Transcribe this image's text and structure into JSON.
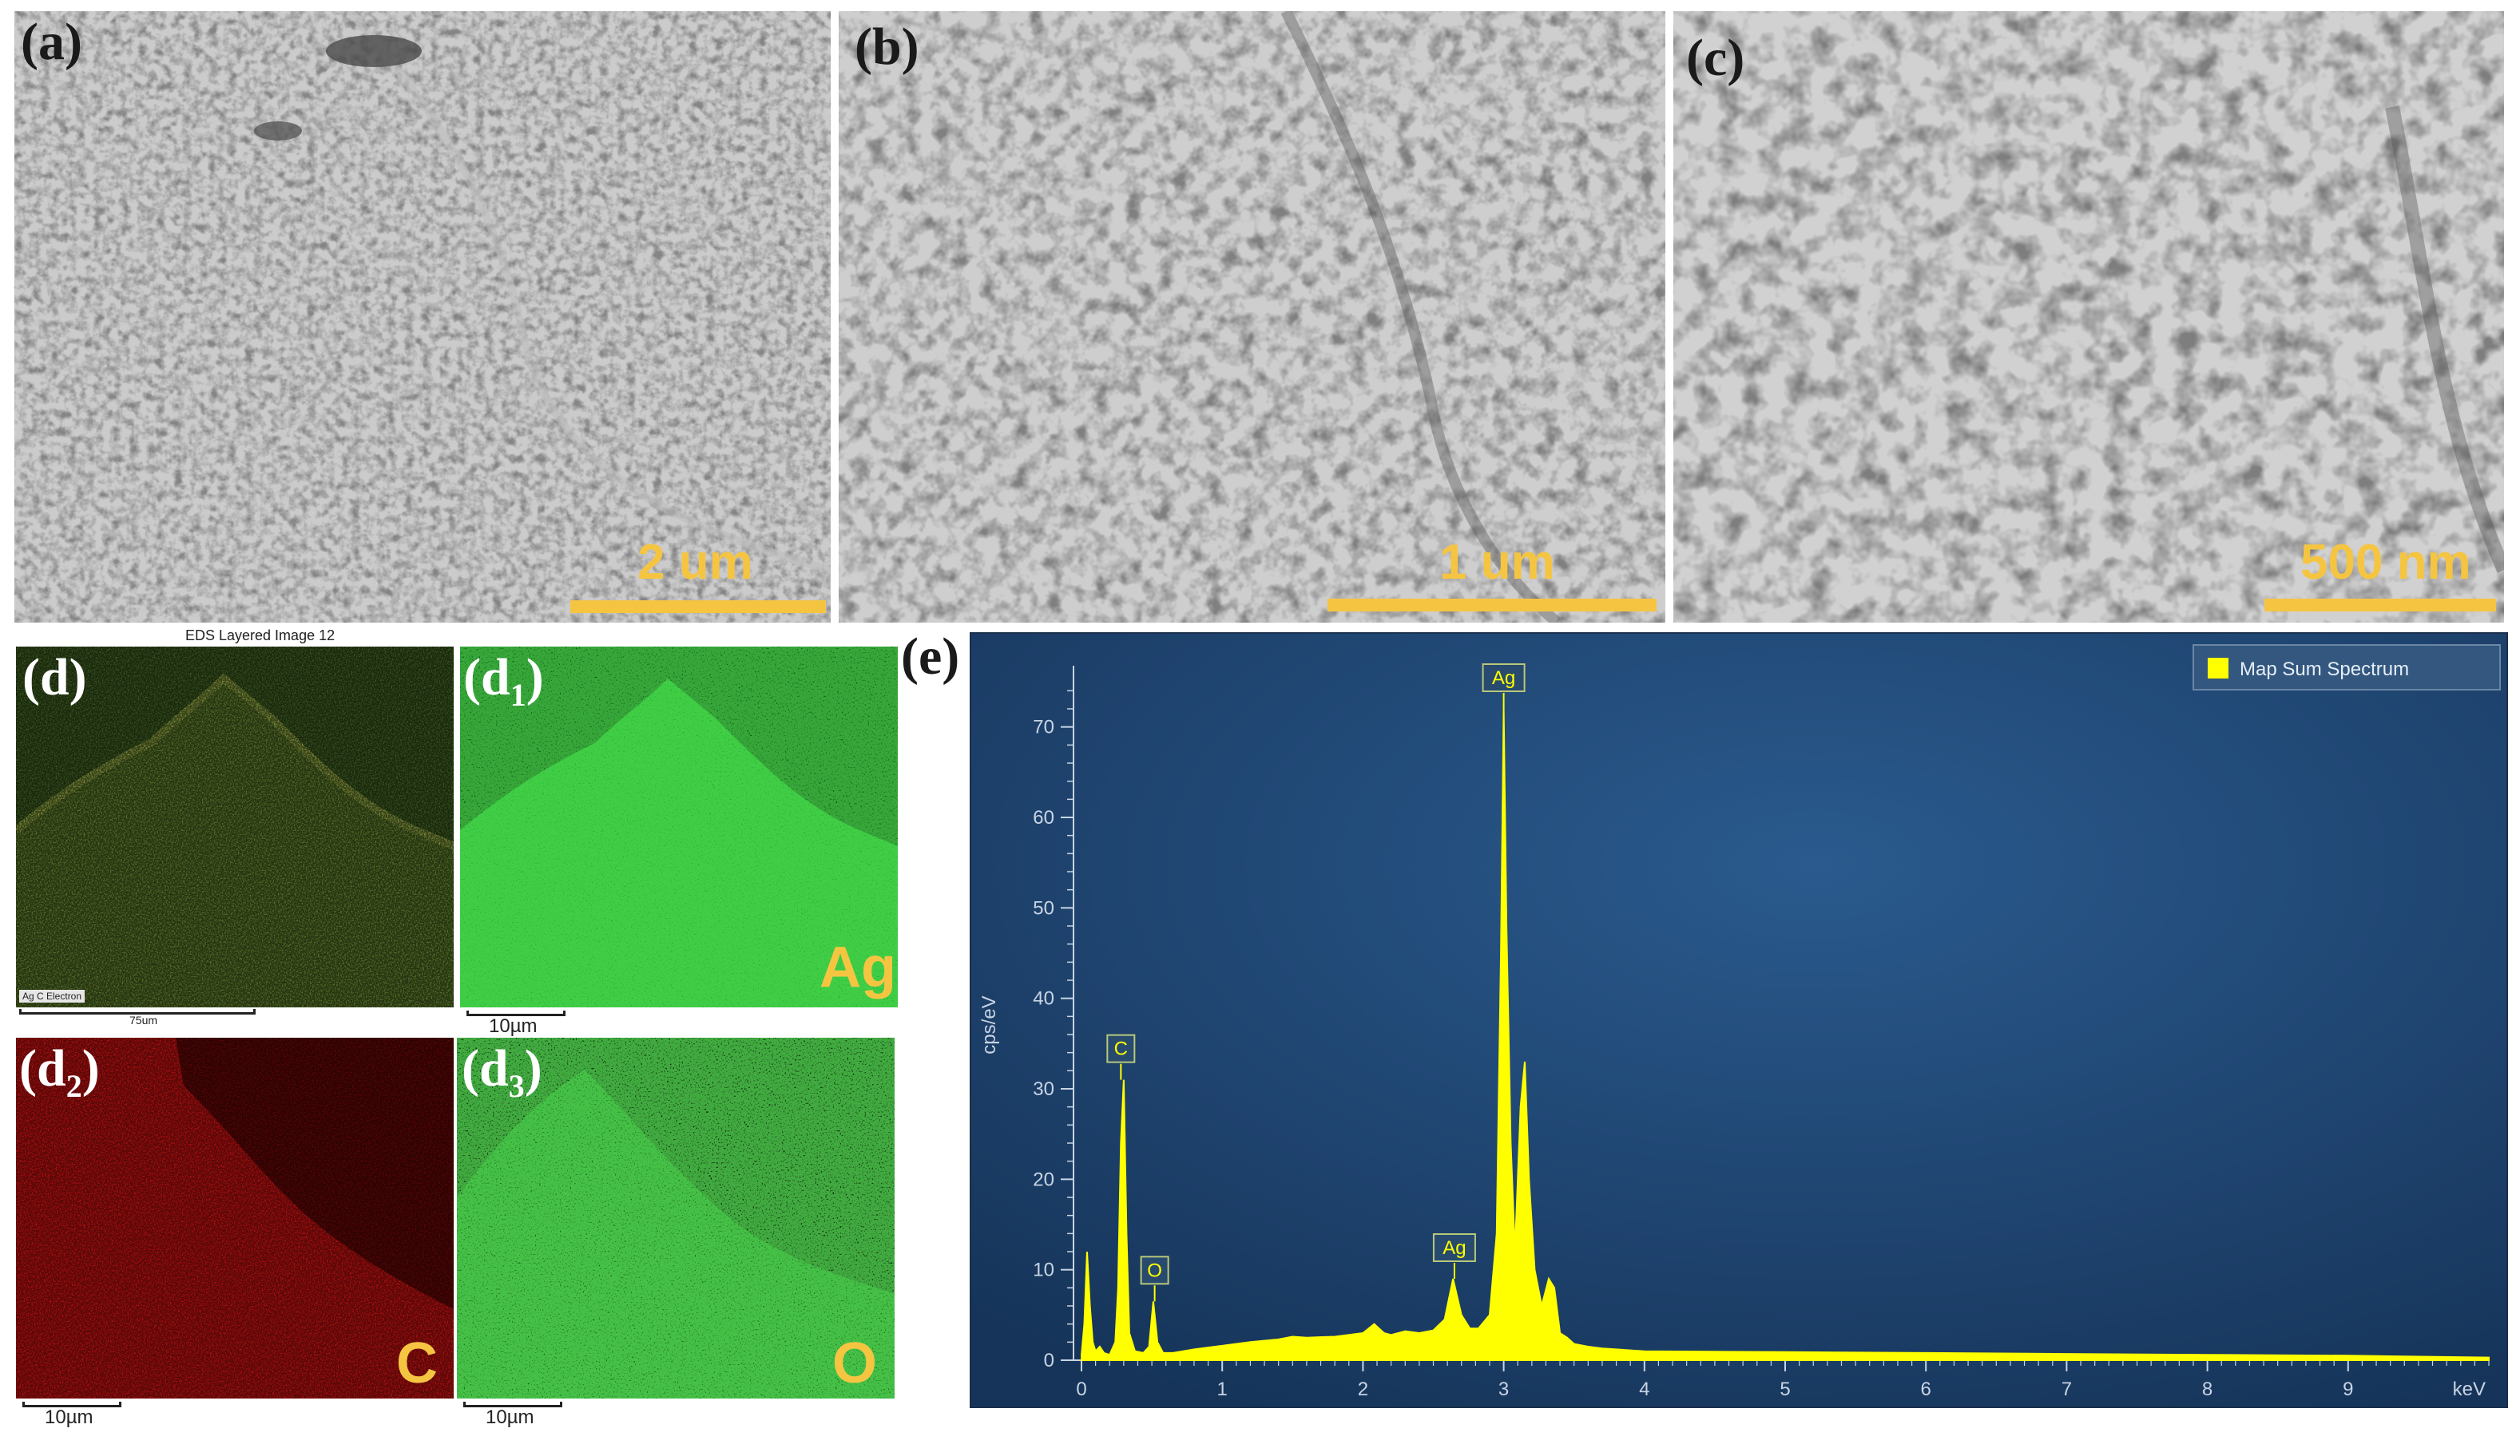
{
  "panels": {
    "a": {
      "label": "(a)",
      "scale": "2 um"
    },
    "b": {
      "label": "(b)",
      "scale": "1 um"
    },
    "c": {
      "label": "(c)",
      "scale": "500 nm"
    },
    "d": {
      "label": "(d)",
      "title": "EDS Layered Image 12",
      "scale": "75um",
      "legend": "Ag C Electron"
    },
    "d1": {
      "label": "(d",
      "sub": "1",
      "close": ")",
      "element": "Ag",
      "scale": "10µm"
    },
    "d2": {
      "label": "(d",
      "sub": "2",
      "close": ")",
      "element": "C",
      "scale": "10µm"
    },
    "d3": {
      "label": "(d",
      "sub": "3",
      "close": ")",
      "element": "O",
      "scale": "10µm"
    },
    "e": {
      "label": "(e)"
    }
  },
  "colors": {
    "scalebar": "#f5c542",
    "spectrum": "#ffff00",
    "plot_bg": "#1d3f6e"
  },
  "chart_data": {
    "type": "line",
    "xlabel": "keV",
    "ylabel": "cps/eV",
    "xlim": [
      0,
      10
    ],
    "ylim": [
      0,
      75
    ],
    "xticks": [
      0,
      1,
      2,
      3,
      4,
      5,
      6,
      7,
      8,
      9
    ],
    "yticks": [
      0,
      10,
      20,
      30,
      40,
      50,
      60,
      70
    ],
    "legend": {
      "label": "Map Sum Spectrum",
      "position": "top-right"
    },
    "series": [
      {
        "name": "Map Sum Spectrum",
        "x": [
          0,
          0.02,
          0.04,
          0.06,
          0.08,
          0.1,
          0.13,
          0.16,
          0.2,
          0.24,
          0.26,
          0.28,
          0.3,
          0.32,
          0.34,
          0.38,
          0.44,
          0.48,
          0.51,
          0.54,
          0.58,
          0.65,
          0.8,
          1.0,
          1.2,
          1.4,
          1.5,
          1.6,
          1.8,
          2.0,
          2.08,
          2.15,
          2.2,
          2.3,
          2.4,
          2.5,
          2.58,
          2.64,
          2.7,
          2.76,
          2.82,
          2.9,
          2.95,
          2.98,
          3.0,
          3.02,
          3.05,
          3.08,
          3.12,
          3.15,
          3.18,
          3.22,
          3.27,
          3.32,
          3.36,
          3.4,
          3.45,
          3.5,
          3.6,
          3.7,
          3.8,
          4.0,
          5.0,
          6.0,
          7.0,
          8.0,
          9.0,
          9.5,
          10.0
        ],
        "y": [
          0.5,
          4,
          12,
          6,
          2,
          1,
          1.5,
          0.8,
          0.6,
          2,
          8,
          24,
          31,
          14,
          3,
          1,
          0.8,
          1.5,
          6.5,
          2,
          0.8,
          0.8,
          1.2,
          1.6,
          2,
          2.3,
          2.6,
          2.5,
          2.6,
          3,
          4,
          3,
          2.8,
          3.2,
          3,
          3.3,
          4.5,
          9,
          5,
          3.5,
          3.5,
          5,
          14,
          45,
          72,
          48,
          24,
          12,
          28,
          33,
          20,
          10,
          6,
          9,
          8,
          3,
          2.5,
          1.8,
          1.5,
          1.3,
          1.2,
          1,
          0.9,
          0.8,
          0.7,
          0.6,
          0.5,
          0.4,
          0.3
        ]
      }
    ],
    "annotations": [
      {
        "label": "C",
        "x": 0.28,
        "y": 31
      },
      {
        "label": "O",
        "x": 0.52,
        "y": 6.5
      },
      {
        "label": "Ag",
        "x": 2.65,
        "y": 9
      },
      {
        "label": "Ag",
        "x": 3.0,
        "y": 72
      }
    ]
  }
}
